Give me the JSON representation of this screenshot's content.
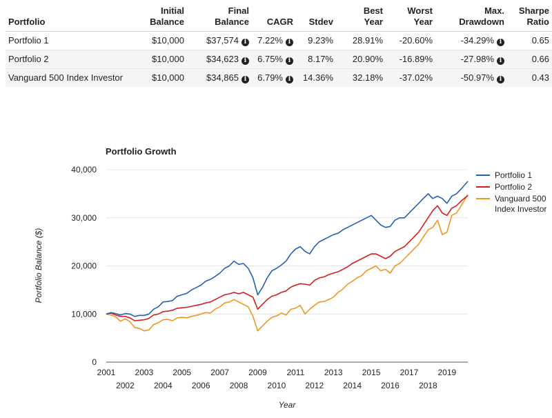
{
  "table": {
    "headers": [
      [
        "Portfolio"
      ],
      [
        "Initial",
        "Balance"
      ],
      [
        "Final",
        "Balance"
      ],
      [
        "CAGR"
      ],
      [
        "Stdev"
      ],
      [
        "Best",
        "Year"
      ],
      [
        "Worst",
        "Year"
      ],
      [
        "Max.",
        "Drawdown"
      ],
      [
        "Sharpe",
        "Ratio"
      ]
    ],
    "rows": [
      {
        "name": "Portfolio 1",
        "initial": "$10,000",
        "final": "$37,574",
        "cagr": "7.22%",
        "stdev": "9.23%",
        "best": "28.91%",
        "worst": "-20.60%",
        "drawdown": "-34.29%",
        "sharpe": "0.65"
      },
      {
        "name": "Portfolio 2",
        "initial": "$10,000",
        "final": "$34,623",
        "cagr": "6.75%",
        "stdev": "8.17%",
        "best": "20.90%",
        "worst": "-16.89%",
        "drawdown": "-27.98%",
        "sharpe": "0.66"
      },
      {
        "name": "Vanguard 500 Index Investor",
        "initial": "$10,000",
        "final": "$34,865",
        "cagr": "6.79%",
        "stdev": "14.36%",
        "best": "32.18%",
        "worst": "-37.02%",
        "drawdown": "-50.97%",
        "sharpe": "0.43"
      }
    ],
    "info_icon_glyph": "i"
  },
  "chart_data": {
    "type": "line",
    "title": "Portfolio Growth",
    "xlabel": "Year",
    "ylabel": "Portfolio Balance ($)",
    "xlim": [
      2001,
      2020.1
    ],
    "ylim": [
      0,
      40000
    ],
    "yticks": [
      0,
      10000,
      20000,
      30000,
      40000
    ],
    "ytick_labels": [
      "0",
      "10,000",
      "20,000",
      "30,000",
      "40,000"
    ],
    "xticks_upper": [
      2001,
      2003,
      2005,
      2007,
      2009,
      2011,
      2013,
      2015,
      2017,
      2019
    ],
    "xticks_lower": [
      2002,
      2004,
      2006,
      2008,
      2010,
      2012,
      2014,
      2016,
      2018
    ],
    "grid": true,
    "legend_position": "right",
    "series": [
      {
        "name": "Portfolio 1",
        "color": "#2160b6",
        "points": [
          [
            2001.0,
            10000
          ],
          [
            2001.25,
            10300
          ],
          [
            2001.5,
            10100
          ],
          [
            2001.75,
            9800
          ],
          [
            2002.0,
            10100
          ],
          [
            2002.25,
            10000
          ],
          [
            2002.5,
            9500
          ],
          [
            2002.75,
            9700
          ],
          [
            2003.0,
            9700
          ],
          [
            2003.25,
            10000
          ],
          [
            2003.5,
            11000
          ],
          [
            2003.75,
            11500
          ],
          [
            2004.0,
            12500
          ],
          [
            2004.25,
            12600
          ],
          [
            2004.5,
            12800
          ],
          [
            2004.75,
            13700
          ],
          [
            2005.0,
            14000
          ],
          [
            2005.25,
            14300
          ],
          [
            2005.5,
            15000
          ],
          [
            2005.75,
            15500
          ],
          [
            2006.0,
            16000
          ],
          [
            2006.25,
            16800
          ],
          [
            2006.5,
            17200
          ],
          [
            2006.75,
            17800
          ],
          [
            2007.0,
            18500
          ],
          [
            2007.25,
            19500
          ],
          [
            2007.5,
            20000
          ],
          [
            2007.75,
            21000
          ],
          [
            2008.0,
            20300
          ],
          [
            2008.25,
            20500
          ],
          [
            2008.5,
            19500
          ],
          [
            2008.75,
            17500
          ],
          [
            2009.0,
            14000
          ],
          [
            2009.25,
            15500
          ],
          [
            2009.5,
            17500
          ],
          [
            2009.75,
            19000
          ],
          [
            2010.0,
            19500
          ],
          [
            2010.25,
            20200
          ],
          [
            2010.5,
            21000
          ],
          [
            2010.75,
            22500
          ],
          [
            2011.0,
            23500
          ],
          [
            2011.25,
            24000
          ],
          [
            2011.5,
            23000
          ],
          [
            2011.75,
            22500
          ],
          [
            2012.0,
            24000
          ],
          [
            2012.25,
            25000
          ],
          [
            2012.5,
            25500
          ],
          [
            2012.75,
            26000
          ],
          [
            2013.0,
            26500
          ],
          [
            2013.25,
            26800
          ],
          [
            2013.5,
            27500
          ],
          [
            2013.75,
            28000
          ],
          [
            2014.0,
            28500
          ],
          [
            2014.25,
            29000
          ],
          [
            2014.5,
            29500
          ],
          [
            2014.75,
            30000
          ],
          [
            2015.0,
            30500
          ],
          [
            2015.25,
            29500
          ],
          [
            2015.5,
            28500
          ],
          [
            2015.75,
            28000
          ],
          [
            2016.0,
            28200
          ],
          [
            2016.25,
            29500
          ],
          [
            2016.5,
            30000
          ],
          [
            2016.75,
            30000
          ],
          [
            2017.0,
            31000
          ],
          [
            2017.25,
            32000
          ],
          [
            2017.5,
            33000
          ],
          [
            2017.75,
            34000
          ],
          [
            2018.0,
            35000
          ],
          [
            2018.25,
            34000
          ],
          [
            2018.5,
            34500
          ],
          [
            2018.75,
            34000
          ],
          [
            2019.0,
            33000
          ],
          [
            2019.25,
            34500
          ],
          [
            2019.5,
            35000
          ],
          [
            2019.75,
            36000
          ],
          [
            2020.1,
            37574
          ]
        ]
      },
      {
        "name": "Portfolio 2",
        "color": "#d21e1e",
        "points": [
          [
            2001.0,
            10000
          ],
          [
            2001.25,
            10200
          ],
          [
            2001.5,
            9800
          ],
          [
            2001.75,
            9500
          ],
          [
            2002.0,
            9500
          ],
          [
            2002.25,
            9200
          ],
          [
            2002.5,
            8600
          ],
          [
            2002.75,
            8700
          ],
          [
            2003.0,
            8800
          ],
          [
            2003.25,
            9100
          ],
          [
            2003.5,
            9800
          ],
          [
            2003.75,
            10000
          ],
          [
            2004.0,
            10500
          ],
          [
            2004.25,
            10600
          ],
          [
            2004.5,
            10800
          ],
          [
            2004.75,
            11200
          ],
          [
            2005.0,
            11300
          ],
          [
            2005.25,
            11400
          ],
          [
            2005.5,
            11600
          ],
          [
            2005.75,
            11800
          ],
          [
            2006.0,
            12000
          ],
          [
            2006.25,
            12300
          ],
          [
            2006.5,
            12500
          ],
          [
            2006.75,
            13000
          ],
          [
            2007.0,
            13500
          ],
          [
            2007.25,
            14000
          ],
          [
            2007.5,
            14200
          ],
          [
            2007.75,
            14500
          ],
          [
            2008.0,
            14200
          ],
          [
            2008.25,
            14500
          ],
          [
            2008.5,
            14000
          ],
          [
            2008.75,
            13500
          ],
          [
            2009.0,
            11000
          ],
          [
            2009.25,
            12000
          ],
          [
            2009.5,
            13000
          ],
          [
            2009.75,
            13700
          ],
          [
            2010.0,
            14000
          ],
          [
            2010.25,
            14500
          ],
          [
            2010.5,
            14800
          ],
          [
            2010.75,
            15600
          ],
          [
            2011.0,
            16000
          ],
          [
            2011.25,
            16300
          ],
          [
            2011.5,
            16200
          ],
          [
            2011.75,
            16000
          ],
          [
            2012.0,
            17000
          ],
          [
            2012.25,
            17500
          ],
          [
            2012.5,
            17700
          ],
          [
            2012.75,
            18200
          ],
          [
            2013.0,
            18500
          ],
          [
            2013.25,
            18800
          ],
          [
            2013.5,
            19300
          ],
          [
            2013.75,
            19800
          ],
          [
            2014.0,
            20500
          ],
          [
            2014.25,
            21000
          ],
          [
            2014.5,
            21500
          ],
          [
            2014.75,
            22000
          ],
          [
            2015.0,
            22500
          ],
          [
            2015.25,
            22500
          ],
          [
            2015.5,
            22000
          ],
          [
            2015.75,
            21500
          ],
          [
            2016.0,
            22000
          ],
          [
            2016.25,
            23000
          ],
          [
            2016.5,
            23500
          ],
          [
            2016.75,
            24000
          ],
          [
            2017.0,
            25000
          ],
          [
            2017.25,
            26000
          ],
          [
            2017.5,
            27000
          ],
          [
            2017.75,
            28500
          ],
          [
            2018.0,
            30000
          ],
          [
            2018.25,
            31500
          ],
          [
            2018.5,
            32500
          ],
          [
            2018.75,
            31000
          ],
          [
            2019.0,
            30500
          ],
          [
            2019.25,
            32000
          ],
          [
            2019.5,
            32500
          ],
          [
            2019.75,
            33500
          ],
          [
            2020.1,
            34623
          ]
        ]
      },
      {
        "name": "Vanguard 500 Index Investor",
        "color": "#f0961e",
        "points": [
          [
            2001.0,
            10000
          ],
          [
            2001.25,
            9800
          ],
          [
            2001.5,
            9400
          ],
          [
            2001.75,
            8500
          ],
          [
            2002.0,
            9000
          ],
          [
            2002.25,
            8400
          ],
          [
            2002.5,
            7200
          ],
          [
            2002.75,
            7000
          ],
          [
            2003.0,
            6500
          ],
          [
            2003.25,
            6700
          ],
          [
            2003.5,
            7800
          ],
          [
            2003.75,
            8200
          ],
          [
            2004.0,
            8800
          ],
          [
            2004.25,
            8900
          ],
          [
            2004.5,
            8600
          ],
          [
            2004.75,
            9200
          ],
          [
            2005.0,
            9300
          ],
          [
            2005.25,
            9200
          ],
          [
            2005.5,
            9500
          ],
          [
            2005.75,
            9700
          ],
          [
            2006.0,
            10000
          ],
          [
            2006.25,
            10300
          ],
          [
            2006.5,
            10200
          ],
          [
            2006.75,
            11000
          ],
          [
            2007.0,
            11500
          ],
          [
            2007.25,
            12300
          ],
          [
            2007.5,
            12500
          ],
          [
            2007.75,
            13000
          ],
          [
            2008.0,
            12500
          ],
          [
            2008.25,
            12000
          ],
          [
            2008.5,
            11500
          ],
          [
            2008.75,
            9500
          ],
          [
            2009.0,
            6500
          ],
          [
            2009.25,
            7500
          ],
          [
            2009.5,
            8500
          ],
          [
            2009.75,
            9300
          ],
          [
            2010.0,
            9600
          ],
          [
            2010.25,
            10200
          ],
          [
            2010.5,
            9800
          ],
          [
            2010.75,
            11000
          ],
          [
            2011.0,
            11200
          ],
          [
            2011.25,
            11800
          ],
          [
            2011.5,
            10000
          ],
          [
            2011.75,
            11000
          ],
          [
            2012.0,
            11800
          ],
          [
            2012.25,
            12500
          ],
          [
            2012.5,
            12600
          ],
          [
            2012.75,
            13000
          ],
          [
            2013.0,
            13500
          ],
          [
            2013.25,
            14500
          ],
          [
            2013.5,
            15200
          ],
          [
            2013.75,
            16200
          ],
          [
            2014.0,
            16800
          ],
          [
            2014.25,
            17500
          ],
          [
            2014.5,
            18000
          ],
          [
            2014.75,
            19000
          ],
          [
            2015.0,
            19500
          ],
          [
            2015.25,
            20000
          ],
          [
            2015.5,
            19000
          ],
          [
            2015.75,
            19300
          ],
          [
            2016.0,
            18500
          ],
          [
            2016.25,
            20000
          ],
          [
            2016.5,
            20500
          ],
          [
            2016.75,
            21500
          ],
          [
            2017.0,
            22500
          ],
          [
            2017.25,
            23500
          ],
          [
            2017.5,
            24500
          ],
          [
            2017.75,
            26000
          ],
          [
            2018.0,
            27500
          ],
          [
            2018.25,
            28000
          ],
          [
            2018.5,
            29500
          ],
          [
            2018.75,
            26500
          ],
          [
            2019.0,
            27000
          ],
          [
            2019.25,
            30500
          ],
          [
            2019.5,
            31000
          ],
          [
            2019.75,
            32500
          ],
          [
            2020.1,
            34865
          ]
        ]
      }
    ]
  }
}
